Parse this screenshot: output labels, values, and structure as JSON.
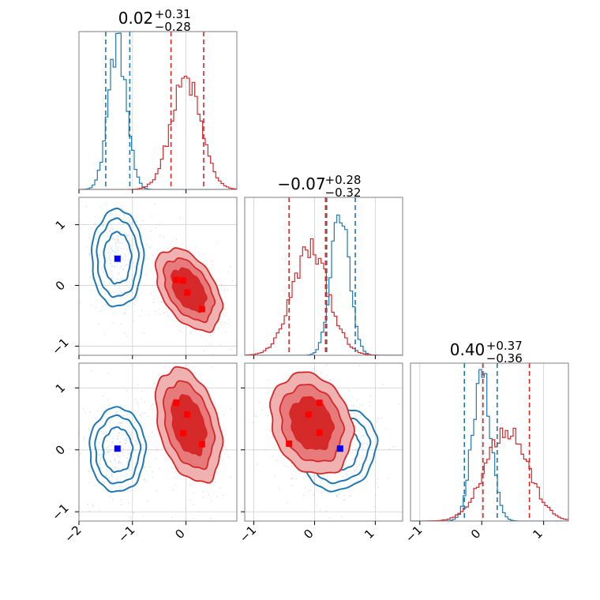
{
  "chart_data": {
    "type": "corner",
    "colors": {
      "red": "#d62728",
      "blue": "#1f77b4",
      "marker_red": "#ff0000",
      "marker_blue": "#0000ff"
    },
    "grid": true,
    "panels": {
      "p1_hist": {
        "title": {
          "value": "0.02",
          "plus": "+0.31",
          "minus": "−0.28"
        },
        "xlim": [
          -2,
          0.95
        ],
        "quantile_lines": {
          "blue": [
            -1.5,
            -1.05
          ],
          "red": [
            -0.28,
            0.33
          ]
        },
        "series": [
          {
            "color": "blue",
            "center": -1.28,
            "sigma": 0.17,
            "peak": 0.93
          },
          {
            "color": "red",
            "center": 0.0,
            "sigma": 0.28,
            "peak": 0.69
          }
        ]
      },
      "p2_hist": {
        "title": {
          "value": "−0.07",
          "plus": "+0.28",
          "minus": "−0.32"
        },
        "xlim": [
          -1.15,
          1.45
        ],
        "quantile_lines": {
          "blue": [
            0.2,
            0.67
          ],
          "red": [
            -0.42,
            0.18
          ]
        },
        "series": [
          {
            "color": "blue",
            "center": 0.42,
            "sigma": 0.15,
            "peak": 0.9
          },
          {
            "color": "red",
            "center": -0.07,
            "sigma": 0.3,
            "peak": 0.67
          }
        ]
      },
      "p3_hist": {
        "title": {
          "value": "0.40",
          "plus": "+0.37",
          "minus": "−0.36"
        },
        "xlim": [
          -1.15,
          1.4
        ],
        "quantile_lines": {
          "blue": [
            -0.28,
            0.25
          ],
          "red": [
            0.02,
            0.77
          ]
        },
        "series": [
          {
            "color": "blue",
            "center": 0.0,
            "sigma": 0.15,
            "peak": 0.93
          },
          {
            "color": "red",
            "center": 0.4,
            "sigma": 0.34,
            "peak": 0.59
          }
        ]
      },
      "p21": {
        "xlim": [
          -2,
          0.95
        ],
        "ylim": [
          -1.15,
          1.45
        ],
        "blue_cloud": {
          "cx": -1.28,
          "cy": 0.45,
          "sx": 0.24,
          "sy": 0.4,
          "rho": 0
        },
        "red_cloud": {
          "cx": 0.05,
          "cy": -0.07,
          "sx": 0.3,
          "sy": 0.33,
          "rho": -0.45
        },
        "markers": {
          "red": [
            [
              -0.18,
              0.09
            ],
            [
              -0.05,
              0.08
            ],
            [
              0.02,
              -0.12
            ],
            [
              0.3,
              -0.39
            ]
          ],
          "blue": [
            [
              -1.28,
              0.44
            ]
          ]
        }
      },
      "p31": {
        "xlim": [
          -2,
          0.95
        ],
        "ylim": [
          -1.15,
          1.4
        ],
        "blue_cloud": {
          "cx": -1.28,
          "cy": 0.0,
          "sx": 0.26,
          "sy": 0.34,
          "rho": 0
        },
        "red_cloud": {
          "cx": 0.05,
          "cy": 0.4,
          "sx": 0.3,
          "sy": 0.45,
          "rho": -0.35
        },
        "markers": {
          "red": [
            [
              -0.18,
              0.76
            ],
            [
              0.02,
              0.57
            ],
            [
              -0.05,
              0.27
            ],
            [
              0.3,
              0.09
            ]
          ],
          "blue": [
            [
              -1.28,
              0.02
            ]
          ]
        }
      },
      "p32": {
        "xlim": [
          -1.15,
          1.45
        ],
        "ylim": [
          -1.15,
          1.4
        ],
        "blue_cloud": {
          "cx": 0.42,
          "cy": 0.0,
          "sx": 0.3,
          "sy": 0.33,
          "rho": 0.15
        },
        "red_cloud": {
          "cx": -0.05,
          "cy": 0.42,
          "sx": 0.33,
          "sy": 0.4,
          "rho": -0.2
        },
        "markers": {
          "red": [
            [
              -0.42,
              0.1
            ],
            [
              0.08,
              0.76
            ],
            [
              -0.1,
              0.57
            ],
            [
              0.08,
              0.28
            ]
          ],
          "blue": [
            [
              0.42,
              0.02
            ]
          ]
        }
      }
    },
    "x_tick_labels": {
      "col1": [
        "−2",
        "−1",
        "0"
      ],
      "col2": [
        "−1",
        "0",
        "1"
      ],
      "col3": [
        "−1",
        "0",
        "1"
      ]
    },
    "y_tick_labels": {
      "row2": [
        "−1",
        "0",
        "1"
      ],
      "row3": [
        "−1",
        "0",
        "1"
      ]
    }
  }
}
